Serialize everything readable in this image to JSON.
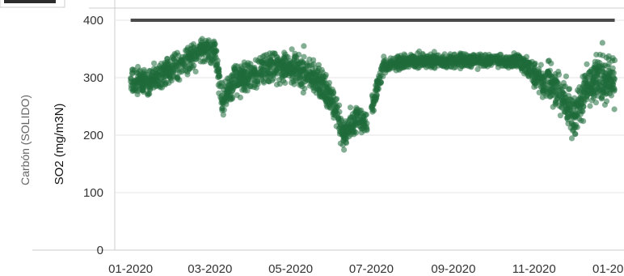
{
  "chart_data": {
    "type": "scatter",
    "group_label": "Carbón (SOLIDO)",
    "ylabel": "SO2 (mg/m3N)",
    "xlabel": "",
    "ylim": [
      0,
      400
    ],
    "yticks": [
      "0",
      "100",
      "200",
      "300",
      "400"
    ],
    "xlim": [
      "2019-12-20",
      "2021-01-08"
    ],
    "xticks": [
      {
        "date": "2020-01-01",
        "label": "01-2020"
      },
      {
        "date": "2020-03-01",
        "label": "03-2020"
      },
      {
        "date": "2020-05-01",
        "label": "05-2020"
      },
      {
        "date": "2020-07-01",
        "label": "07-2020"
      },
      {
        "date": "2020-09-01",
        "label": "09-2020"
      },
      {
        "date": "2020-11-01",
        "label": "11-2020"
      },
      {
        "date": "2021-01-01",
        "label": "01-2021"
      }
    ],
    "reference_line": {
      "value": 400,
      "from": "2020-01-01",
      "to": "2021-01-01",
      "color": "#4a4a4a"
    },
    "point_color": "#1f6b3a",
    "grid": "horizontal",
    "legend": "top-left (partially visible)",
    "trend": [
      {
        "date": "2020-01-01",
        "value": 300
      },
      {
        "date": "2020-01-10",
        "value": 290
      },
      {
        "date": "2020-01-25",
        "value": 305
      },
      {
        "date": "2020-02-10",
        "value": 330
      },
      {
        "date": "2020-02-25",
        "value": 350
      },
      {
        "date": "2020-03-05",
        "value": 345
      },
      {
        "date": "2020-03-10",
        "value": 260
      },
      {
        "date": "2020-03-20",
        "value": 295
      },
      {
        "date": "2020-04-10",
        "value": 315
      },
      {
        "date": "2020-04-25",
        "value": 320
      },
      {
        "date": "2020-05-10",
        "value": 315
      },
      {
        "date": "2020-05-25",
        "value": 290
      },
      {
        "date": "2020-06-05",
        "value": 240
      },
      {
        "date": "2020-06-10",
        "value": 200
      },
      {
        "date": "2020-06-20",
        "value": 230
      },
      {
        "date": "2020-06-28",
        "value": 220
      },
      {
        "date": "2020-07-03",
        "value": 260
      },
      {
        "date": "2020-07-10",
        "value": 320
      },
      {
        "date": "2020-08-01",
        "value": 330
      },
      {
        "date": "2020-09-01",
        "value": 330
      },
      {
        "date": "2020-10-01",
        "value": 330
      },
      {
        "date": "2020-10-20",
        "value": 330
      },
      {
        "date": "2020-11-05",
        "value": 300
      },
      {
        "date": "2020-11-20",
        "value": 280
      },
      {
        "date": "2020-12-01",
        "value": 230
      },
      {
        "date": "2020-12-10",
        "value": 280
      },
      {
        "date": "2020-12-20",
        "value": 300
      },
      {
        "date": "2021-01-01",
        "value": 300
      }
    ],
    "spread": [
      {
        "date": "2020-01-01",
        "value": 25
      },
      {
        "date": "2020-03-01",
        "value": 25
      },
      {
        "date": "2020-05-01",
        "value": 30
      },
      {
        "date": "2020-06-15",
        "value": 25
      },
      {
        "date": "2020-07-15",
        "value": 12
      },
      {
        "date": "2020-10-25",
        "value": 12
      },
      {
        "date": "2020-11-10",
        "value": 35
      },
      {
        "date": "2021-01-01",
        "value": 45
      }
    ],
    "gaps": [
      {
        "from": "2020-06-28",
        "to": "2020-07-01"
      }
    ]
  }
}
